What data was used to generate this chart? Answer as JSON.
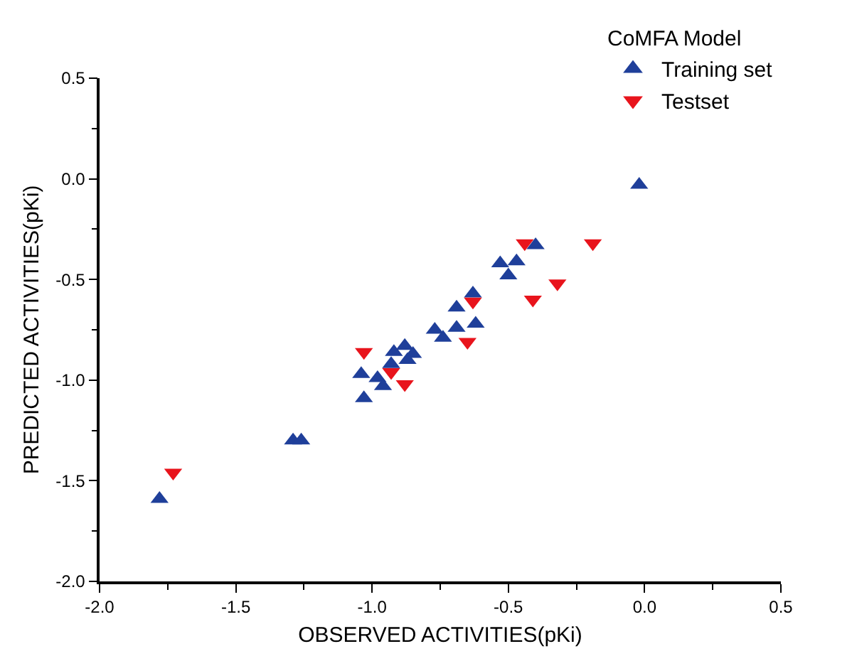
{
  "chart_data": {
    "type": "scatter",
    "xlabel": "OBSERVED ACTIVITIES(pKi)",
    "ylabel": "PREDICTED ACTIVITIES(pKi)",
    "legend_title": "CoMFA Model",
    "legend": "top right",
    "grid": false,
    "xlim": [
      -2.0,
      0.5
    ],
    "xticks": [
      {
        "value": -2,
        "label": "-2.0"
      },
      {
        "value": -1.5,
        "label": "-1.5"
      },
      {
        "value": -1,
        "label": "-1.0"
      },
      {
        "value": -0.5,
        "label": "-0.5"
      },
      {
        "value": 0,
        "label": "0.0"
      },
      {
        "value": 0.5,
        "label": "0.5"
      }
    ],
    "ylim": [
      -2.0,
      0.5
    ],
    "yticks": [
      {
        "value": -2,
        "label": "-2.0"
      },
      {
        "value": -1.5,
        "label": "-1.5"
      },
      {
        "value": -1,
        "label": "-1.0"
      },
      {
        "value": -0.5,
        "label": "-0.5"
      },
      {
        "value": 0,
        "label": "0.0"
      },
      {
        "value": 0.5,
        "label": "0.5"
      }
    ],
    "series": [
      {
        "name": "Training set",
        "color": "#1f3f9a",
        "marker": "triangle-up",
        "x": [
          -0.02,
          -0.4,
          -0.53,
          -0.47,
          -0.5,
          -0.69,
          -0.63,
          -0.77,
          -0.74,
          -0.69,
          -0.62,
          -0.92,
          -0.88,
          -0.85,
          -0.87,
          -0.93,
          -1.04,
          -0.98,
          -0.96,
          -1.03,
          -1.29,
          -1.26,
          -1.78
        ],
        "values": [
          -0.03,
          -0.33,
          -0.42,
          -0.41,
          -0.48,
          -0.64,
          -0.57,
          -0.75,
          -0.79,
          -0.74,
          -0.72,
          -0.86,
          -0.83,
          -0.87,
          -0.9,
          -0.92,
          -0.97,
          -0.99,
          -1.03,
          -1.09,
          -1.3,
          -1.3,
          -1.59
        ]
      },
      {
        "name": "Testset",
        "color": "#e8141c",
        "marker": "triangle-down",
        "x": [
          -0.44,
          -0.19,
          -0.32,
          -0.41,
          -0.63,
          -0.65,
          -1.03,
          -0.93,
          -0.88,
          -1.73
        ],
        "values": [
          -0.32,
          -0.32,
          -0.52,
          -0.6,
          -0.61,
          -0.81,
          -0.86,
          -0.96,
          -1.02,
          -1.46
        ]
      }
    ]
  }
}
